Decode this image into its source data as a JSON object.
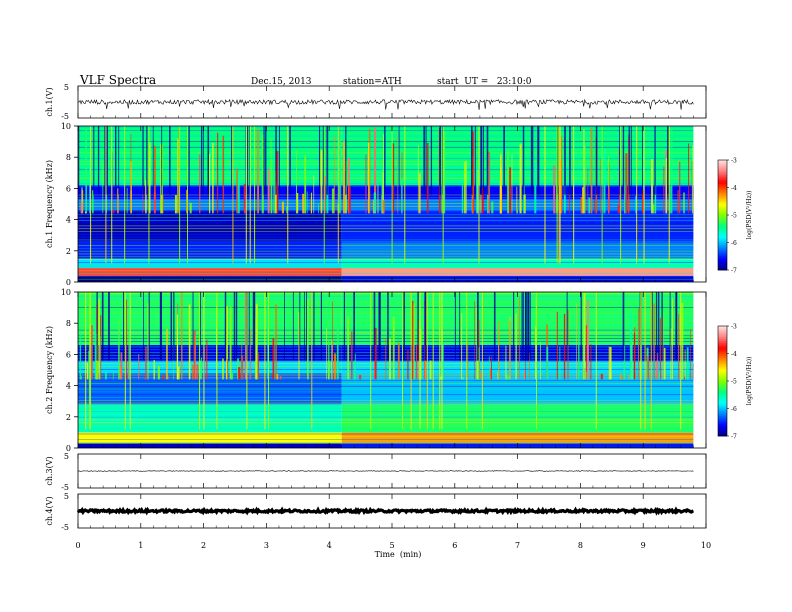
{
  "header": {
    "title": "VLF Spectra",
    "date": "Dec.15, 2013",
    "station": "station=ATH",
    "start": "start  UT =   23:10:0"
  },
  "chart_data": [
    {
      "type": "line",
      "name": "ch1-waveform",
      "ylabel": "ch.1(V)",
      "ylim": [
        -5,
        5
      ],
      "yticks": [
        "5",
        "-5"
      ],
      "baseline_v": 0.0,
      "noise_amp_v": 0.7,
      "spike_v": -2.5
    },
    {
      "type": "heatmap",
      "name": "ch1-spectrogram",
      "ylabel": "ch.1 Frequency (kHz)",
      "ylim": [
        0,
        10
      ],
      "yticks": [
        "0",
        "2",
        "4",
        "6",
        "8",
        "10"
      ],
      "x_range_min": [
        0,
        9.8
      ],
      "break_time_min": 4.2,
      "bands": [
        {
          "f0": 0.0,
          "f1": 0.4,
          "logpsd": -7.0
        },
        {
          "f0": 0.4,
          "f1": 0.9,
          "logpsd": -3.6
        },
        {
          "f0": 0.9,
          "f1": 1.5,
          "logpsd": -5.9
        },
        {
          "f0": 1.5,
          "f1": 2.6,
          "logpsd": -6.5
        },
        {
          "f0": 2.6,
          "f1": 4.6,
          "logpsd": -6.8
        },
        {
          "f0": 4.6,
          "f1": 5.3,
          "logpsd": -6.2
        },
        {
          "f0": 5.3,
          "f1": 6.2,
          "logpsd": -6.6
        },
        {
          "f0": 6.2,
          "f1": 10.0,
          "logpsd": -5.4
        }
      ]
    },
    {
      "type": "heatmap",
      "name": "ch2-spectrogram",
      "ylabel": "ch.2 Frequency (kHz)",
      "ylim": [
        0,
        10
      ],
      "yticks": [
        "0",
        "2",
        "4",
        "6",
        "8",
        "10"
      ],
      "x_range_min": [
        0,
        9.8
      ],
      "break_time_min": 4.2,
      "bands": [
        {
          "f0": 0.0,
          "f1": 0.3,
          "logpsd": -6.8
        },
        {
          "f0": 0.3,
          "f1": 1.0,
          "logpsd": -4.6
        },
        {
          "f0": 1.0,
          "f1": 2.8,
          "logpsd": -5.6
        },
        {
          "f0": 2.8,
          "f1": 4.8,
          "logpsd": -6.3
        },
        {
          "f0": 4.8,
          "f1": 5.6,
          "logpsd": -5.9
        },
        {
          "f0": 5.6,
          "f1": 6.6,
          "logpsd": -6.7
        },
        {
          "f0": 6.6,
          "f1": 10.0,
          "logpsd": -5.3
        }
      ]
    },
    {
      "type": "line",
      "name": "ch3-waveform",
      "ylabel": "ch.3(V)",
      "ylim": [
        -5,
        5
      ],
      "yticks": [
        "5",
        "-5"
      ],
      "baseline_v": 0.0,
      "noise_amp_v": 0.1
    },
    {
      "type": "line",
      "name": "ch4-waveform",
      "ylabel": "ch.4(V)",
      "ylim": [
        -5,
        5
      ],
      "yticks": [
        "5",
        "-5"
      ],
      "baseline_v": 0.0,
      "noise_amp_v": 0.35
    }
  ],
  "xaxis": {
    "label": "Time  (min)",
    "range": [
      0,
      10
    ],
    "ticks": [
      "0",
      "1",
      "2",
      "3",
      "4",
      "5",
      "6",
      "7",
      "8",
      "9",
      "10"
    ]
  },
  "colorbar": {
    "label": "log(PSD(V²/Hz))",
    "range": [
      -7,
      -3
    ],
    "ticks": [
      "-3",
      "-4",
      "-5",
      "-6",
      "-7"
    ],
    "colors": [
      "#000080",
      "#0000ff",
      "#0080ff",
      "#00ffff",
      "#00ff80",
      "#80ff00",
      "#ffff00",
      "#ff8000",
      "#ff0000",
      "#ff8080",
      "#ffe0e0"
    ]
  }
}
